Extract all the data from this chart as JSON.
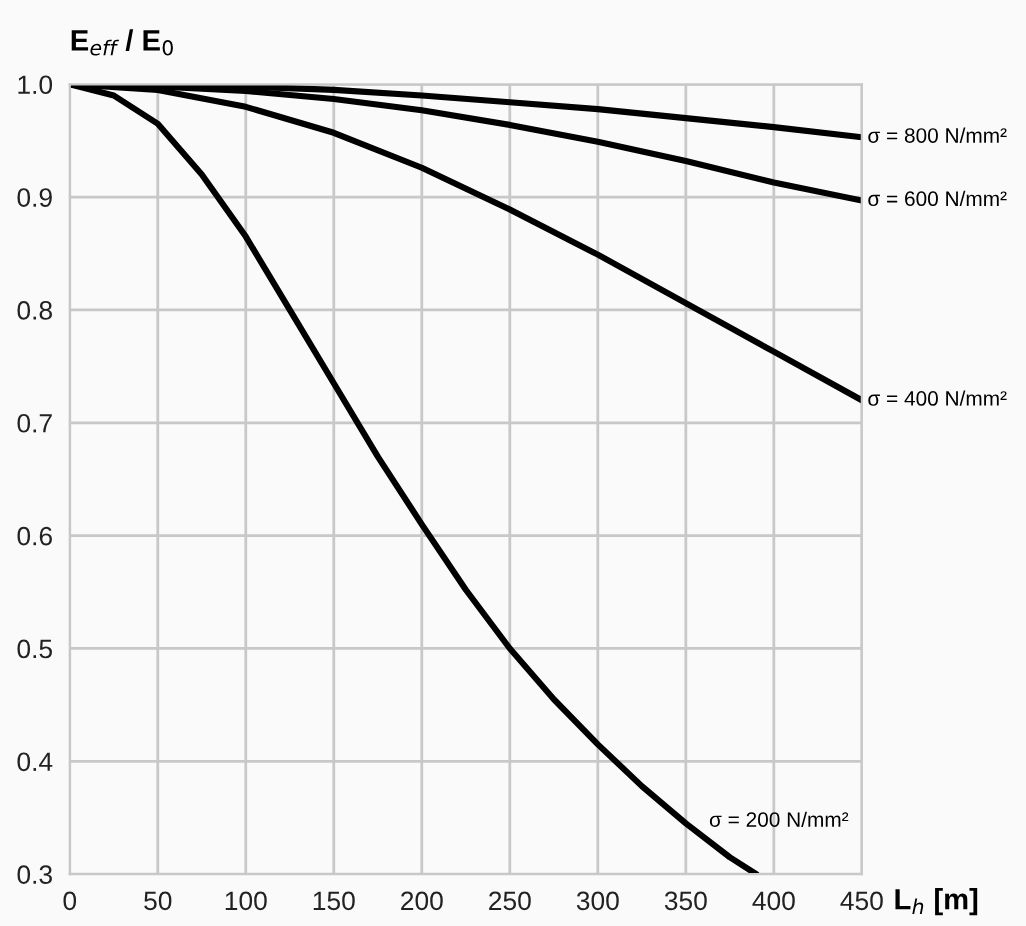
{
  "chart_data": {
    "type": "line",
    "xlabel": "L$_{h}$ [m]",
    "ylabel": "E$_{eff}$ / E$_{0}$",
    "series": [
      {
        "color": "#000000",
        "x": [
          0,
          50,
          100,
          150,
          200,
          250,
          300,
          350,
          400,
          450
        ],
        "values": [
          1.0,
          1.0,
          0.998,
          0.995,
          0.99,
          0.984,
          0.978,
          0.97,
          0.962,
          0.953
        ]
      },
      {
        "color": "#000000",
        "x": [
          0,
          50,
          100,
          150,
          200,
          250,
          300,
          350,
          400,
          450
        ],
        "values": [
          1.0,
          0.998,
          0.994,
          0.987,
          0.977,
          0.964,
          0.949,
          0.932,
          0.913,
          0.897
        ]
      },
      {
        "color": "#000000",
        "x": [
          0,
          50,
          100,
          150,
          200,
          250,
          300,
          350,
          400,
          450
        ],
        "values": [
          1.0,
          0.995,
          0.98,
          0.957,
          0.926,
          0.889,
          0.849,
          0.806,
          0.763,
          0.72
        ]
      },
      {
        "color": "#000000",
        "x": [
          0,
          25,
          50,
          75,
          100,
          125,
          150,
          175,
          200,
          225,
          250,
          275,
          300,
          325,
          350,
          375,
          390
        ],
        "values": [
          1.0,
          0.99,
          0.965,
          0.92,
          0.865,
          0.8,
          0.735,
          0.67,
          0.61,
          0.552,
          0.5,
          0.455,
          0.415,
          0.378,
          0.345,
          0.315,
          0.3
        ]
      }
    ],
    "annotations": [
      "σ = 800 N/mm²",
      "σ = 600 N/mm²",
      "σ = 400 N/mm²",
      "σ = 200 N/mm²"
    ],
    "xlim": [
      0,
      450
    ],
    "ylim": [
      0.3,
      1.0
    ],
    "xticks": [
      0,
      50,
      100,
      150,
      200,
      250,
      300,
      350,
      400,
      450
    ],
    "yticks": [
      {
        "value": 0.3,
        "label": "0.3"
      },
      {
        "value": 0.4,
        "label": "0.4"
      },
      {
        "value": 0.5,
        "label": "0.5"
      },
      {
        "value": 0.6,
        "label": "0.6"
      },
      {
        "value": 0.7,
        "label": "0.7"
      },
      {
        "value": 0.8,
        "label": "0.8"
      },
      {
        "value": 0.9,
        "label": "0.9"
      },
      {
        "value": 1.0,
        "label": "1.0"
      }
    ],
    "grid": true,
    "marker": "none",
    "line_style": "solid",
    "legend": false
  }
}
